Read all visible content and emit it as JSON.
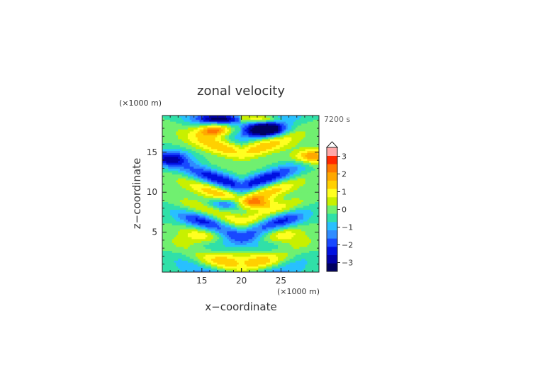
{
  "chart_data": {
    "type": "heatmap",
    "title": "zonal velocity",
    "time_label": "7200 s",
    "xlabel": "x−coordinate",
    "ylabel": "z−coordinate",
    "x_unit": "(×1000 m)",
    "y_unit": "(×1000 m)",
    "xlim": [
      10,
      29.8
    ],
    "ylim": [
      0,
      19.6
    ],
    "x_ticks": [
      15,
      20,
      25
    ],
    "y_ticks": [
      5,
      10,
      15
    ],
    "colorbar": {
      "ticks": [
        3,
        2,
        1,
        0,
        -1,
        -2,
        -3
      ],
      "tick_labels": [
        "3",
        "2",
        "1",
        "0",
        "−1",
        "−2",
        "−3"
      ],
      "range": [
        -3.5,
        3.5
      ],
      "step": 0.5,
      "extend": "max",
      "colors": [
        "#000060",
        "#0000a8",
        "#0010e0",
        "#1848ff",
        "#2f8cff",
        "#28c0ff",
        "#30e0a8",
        "#70f070",
        "#c8f000",
        "#ffff20",
        "#ffd000",
        "#ffa800",
        "#ff7800",
        "#ff2800",
        "#ffa8a8",
        "#ffffff"
      ]
    },
    "field_description": "Symmetric layered pattern about x=20 with alternating positive (red) and negative (blue) bands tilting away from the center; strongest values near z=17-18."
  }
}
